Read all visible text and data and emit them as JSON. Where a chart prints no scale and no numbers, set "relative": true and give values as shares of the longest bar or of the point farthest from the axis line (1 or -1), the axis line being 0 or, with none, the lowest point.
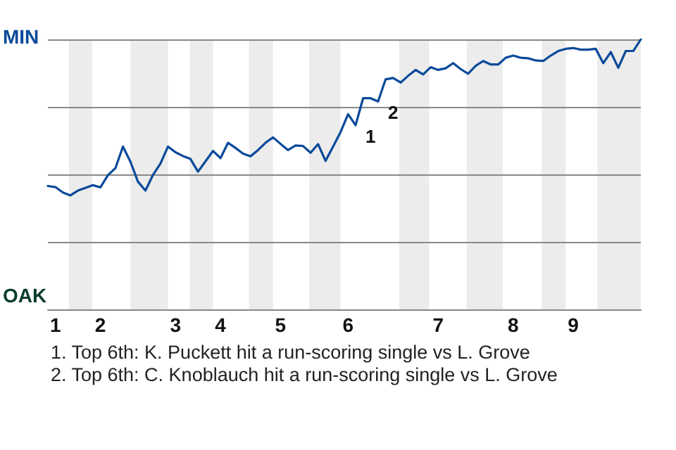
{
  "chart_data": {
    "type": "line",
    "relative": true,
    "categories": [
      null,
      "1",
      null,
      null,
      null,
      null,
      null,
      "2",
      null,
      null,
      null,
      null,
      null,
      null,
      null,
      null,
      null,
      "3",
      null,
      null,
      null,
      null,
      null,
      "4",
      null,
      null,
      null,
      null,
      null,
      null,
      null,
      "5",
      null,
      null,
      null,
      null,
      null,
      null,
      null,
      null,
      "6",
      null,
      null,
      null,
      null,
      null,
      null,
      null,
      null,
      null,
      null,
      null,
      "7",
      null,
      null,
      null,
      null,
      null,
      null,
      null,
      null,
      null,
      "8",
      null,
      null,
      null,
      null,
      null,
      null,
      null,
      "9",
      null,
      null,
      null,
      null,
      null,
      null,
      null,
      null,
      null
    ],
    "series": [
      {
        "color": "#0a4a9a",
        "values": [
          0.457,
          0.453,
          0.433,
          0.422,
          0.44,
          0.45,
          0.46,
          0.452,
          0.497,
          0.523,
          0.603,
          0.547,
          0.473,
          0.44,
          0.498,
          0.54,
          0.603,
          0.582,
          0.568,
          0.557,
          0.51,
          0.548,
          0.587,
          0.56,
          0.617,
          0.598,
          0.577,
          0.567,
          0.59,
          0.617,
          0.637,
          0.613,
          0.59,
          0.607,
          0.605,
          0.58,
          0.612,
          0.55,
          0.603,
          0.657,
          0.723,
          0.682,
          0.782,
          0.782,
          0.77,
          0.852,
          0.857,
          0.84,
          0.865,
          0.887,
          0.87,
          0.897,
          0.887,
          0.893,
          0.912,
          0.89,
          0.873,
          0.902,
          0.92,
          0.907,
          0.907,
          0.932,
          0.94,
          0.932,
          0.93,
          0.922,
          0.92,
          0.94,
          0.957,
          0.965,
          0.968,
          0.962,
          0.962,
          0.965,
          0.912,
          0.953,
          0.895,
          0.957,
          0.957,
          1
        ]
      }
    ],
    "marker": "none",
    "line_style": "solid",
    "grid": "y",
    "annotations": [
      "MIN",
      "OAK",
      "1",
      "2",
      "1. Top 6th: K. Puckett hit a run-scoring single vs L. Grove",
      "2. Top 6th: C. Knoblauch hit a run-scoring single vs L. Grove"
    ]
  }
}
